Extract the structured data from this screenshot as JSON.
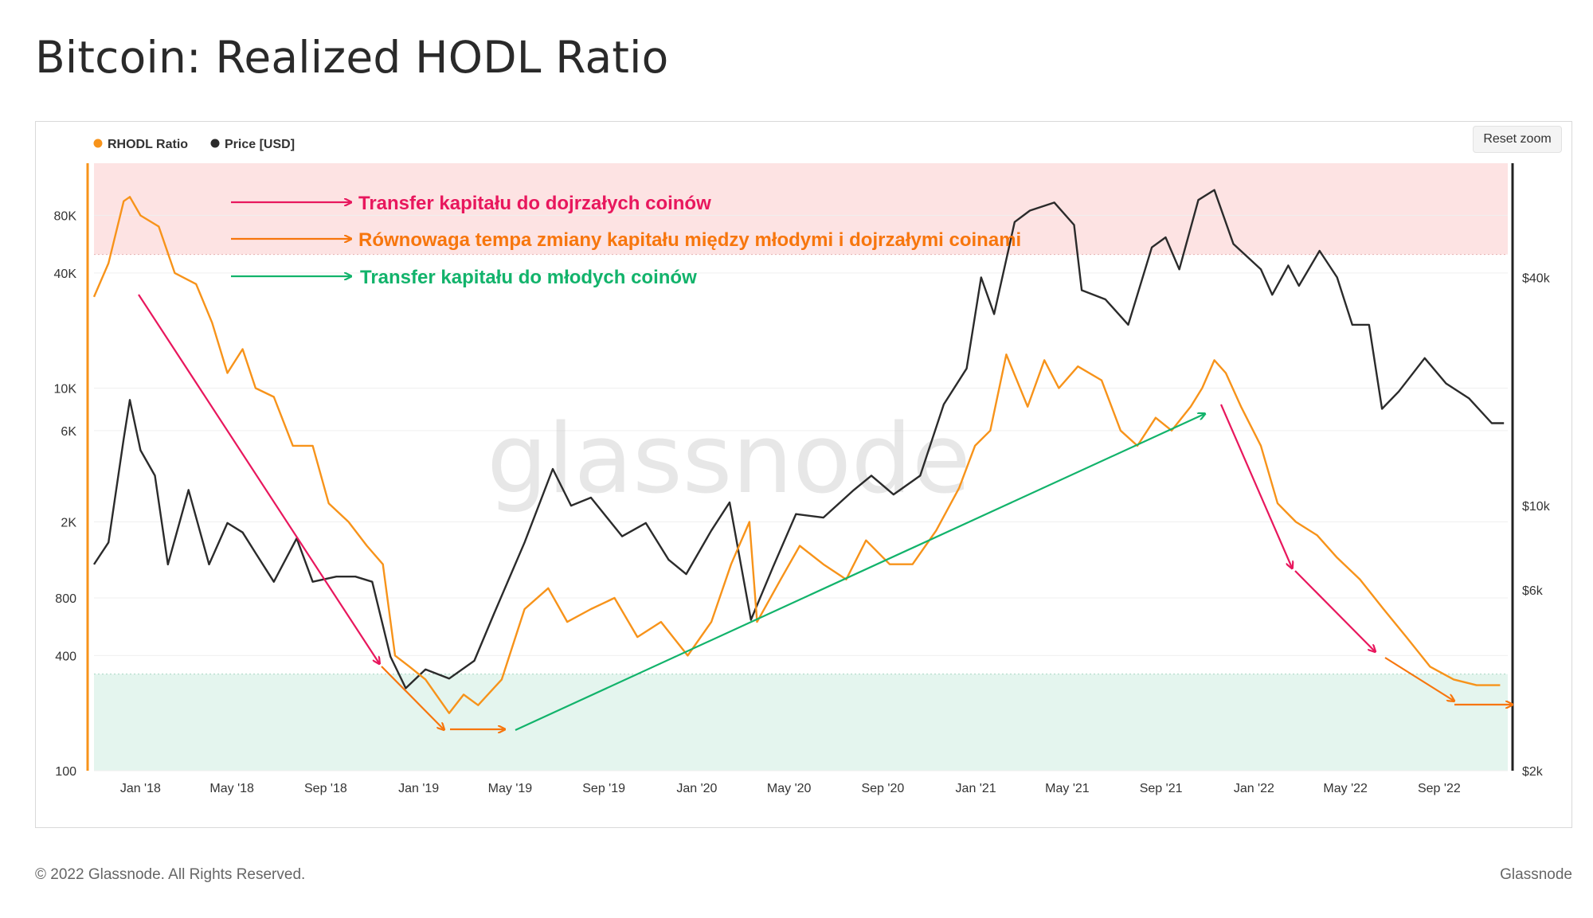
{
  "title": "Bitcoin: Realized HODL Ratio",
  "reset_zoom_label": "Reset zoom",
  "footer": {
    "copyright": "© 2022 Glassnode. All Rights Reserved.",
    "brand": "Glassnode"
  },
  "watermark": "glassnode",
  "colors": {
    "rhodl": "#f7931a",
    "price": "#2b2b2b",
    "mature_annotation": "#e8175d",
    "equilibrium_annotation": "#f7760d",
    "young_annotation": "#12b36b",
    "upper_band": "#fde3e3",
    "lower_band": "#e4f5ee"
  },
  "chart_data": {
    "type": "line",
    "x_range": [
      "2017-11-01",
      "2022-11-30"
    ],
    "x_ticks": [
      "Jan '18",
      "May '18",
      "Sep '18",
      "Jan '19",
      "May '19",
      "Sep '19",
      "Jan '20",
      "May '20",
      "Sep '20",
      "Jan '21",
      "May '21",
      "Sep '21",
      "Jan '22",
      "May '22",
      "Sep '22"
    ],
    "left_axis": {
      "scale": "log",
      "range": [
        100,
        150000
      ],
      "ticks": [
        {
          "value": 100,
          "label": "100"
        },
        {
          "value": 400,
          "label": "400"
        },
        {
          "value": 800,
          "label": "800"
        },
        {
          "value": 2000,
          "label": "2K"
        },
        {
          "value": 6000,
          "label": "6K"
        },
        {
          "value": 10000,
          "label": "10K"
        },
        {
          "value": 40000,
          "label": "40K"
        },
        {
          "value": 80000,
          "label": "80K"
        }
      ]
    },
    "right_axis": {
      "scale": "log",
      "range": [
        2000,
        80000
      ],
      "ticks": [
        {
          "value": 2000,
          "label": "$2k"
        },
        {
          "value": 6000,
          "label": "$6k"
        },
        {
          "value": 10000,
          "label": "$10k"
        },
        {
          "value": 40000,
          "label": "$40k"
        }
      ]
    },
    "bands": [
      {
        "name": "upper",
        "from": 50000,
        "to": 150000
      },
      {
        "name": "lower",
        "from": 100,
        "to": 320
      }
    ],
    "legend": {
      "placement": "top-left",
      "items": [
        {
          "label": "RHODL Ratio",
          "color": "#f7931a"
        },
        {
          "label": "Price [USD]",
          "color": "#2b2b2b"
        }
      ]
    },
    "series": [
      {
        "name": "RHODL Ratio",
        "axis": "left",
        "color": "#f7931a",
        "points": [
          [
            "2017-11-01",
            30000
          ],
          [
            "2017-11-20",
            45000
          ],
          [
            "2017-12-10",
            95000
          ],
          [
            "2017-12-18",
            100000
          ],
          [
            "2018-01-01",
            80000
          ],
          [
            "2018-01-25",
            70000
          ],
          [
            "2018-02-15",
            40000
          ],
          [
            "2018-03-15",
            35000
          ],
          [
            "2018-04-05",
            22000
          ],
          [
            "2018-04-25",
            12000
          ],
          [
            "2018-05-15",
            16000
          ],
          [
            "2018-06-01",
            10000
          ],
          [
            "2018-06-25",
            9000
          ],
          [
            "2018-07-20",
            5000
          ],
          [
            "2018-08-15",
            5000
          ],
          [
            "2018-09-05",
            2500
          ],
          [
            "2018-10-01",
            2000
          ],
          [
            "2018-10-25",
            1500
          ],
          [
            "2018-11-15",
            1200
          ],
          [
            "2018-12-01",
            400
          ],
          [
            "2018-12-20",
            350
          ],
          [
            "2019-01-10",
            300
          ],
          [
            "2019-02-10",
            200
          ],
          [
            "2019-03-01",
            250
          ],
          [
            "2019-03-20",
            220
          ],
          [
            "2019-04-20",
            300
          ],
          [
            "2019-05-20",
            700
          ],
          [
            "2019-06-20",
            900
          ],
          [
            "2019-07-15",
            600
          ],
          [
            "2019-08-15",
            700
          ],
          [
            "2019-09-15",
            800
          ],
          [
            "2019-10-15",
            500
          ],
          [
            "2019-11-15",
            600
          ],
          [
            "2019-12-20",
            400
          ],
          [
            "2020-01-20",
            600
          ],
          [
            "2020-02-15",
            1200
          ],
          [
            "2020-03-10",
            2000
          ],
          [
            "2020-03-20",
            600
          ],
          [
            "2020-04-20",
            1000
          ],
          [
            "2020-05-15",
            1500
          ],
          [
            "2020-06-15",
            1200
          ],
          [
            "2020-07-15",
            1000
          ],
          [
            "2020-08-10",
            1600
          ],
          [
            "2020-09-10",
            1200
          ],
          [
            "2020-10-10",
            1200
          ],
          [
            "2020-11-10",
            1800
          ],
          [
            "2020-12-10",
            3000
          ],
          [
            "2020-12-31",
            5000
          ],
          [
            "2021-01-20",
            6000
          ],
          [
            "2021-02-10",
            15000
          ],
          [
            "2021-03-10",
            8000
          ],
          [
            "2021-04-01",
            14000
          ],
          [
            "2021-04-20",
            10000
          ],
          [
            "2021-05-15",
            13000
          ],
          [
            "2021-06-15",
            11000
          ],
          [
            "2021-07-10",
            6000
          ],
          [
            "2021-08-01",
            5000
          ],
          [
            "2021-08-25",
            7000
          ],
          [
            "2021-09-15",
            6000
          ],
          [
            "2021-10-10",
            8000
          ],
          [
            "2021-10-25",
            10000
          ],
          [
            "2021-11-10",
            14000
          ],
          [
            "2021-11-25",
            12000
          ],
          [
            "2021-12-15",
            8000
          ],
          [
            "2022-01-10",
            5000
          ],
          [
            "2022-02-01",
            2500
          ],
          [
            "2022-02-25",
            2000
          ],
          [
            "2022-03-25",
            1700
          ],
          [
            "2022-04-20",
            1300
          ],
          [
            "2022-05-20",
            1000
          ],
          [
            "2022-06-20",
            700
          ],
          [
            "2022-07-20",
            500
          ],
          [
            "2022-08-20",
            350
          ],
          [
            "2022-09-20",
            300
          ],
          [
            "2022-10-20",
            280
          ],
          [
            "2022-11-20",
            280
          ]
        ]
      },
      {
        "name": "Price [USD]",
        "axis": "right",
        "color": "#2b2b2b",
        "points": [
          [
            "2017-11-01",
            7000
          ],
          [
            "2017-11-20",
            8000
          ],
          [
            "2017-12-10",
            15000
          ],
          [
            "2017-12-18",
            19000
          ],
          [
            "2018-01-01",
            14000
          ],
          [
            "2018-01-20",
            12000
          ],
          [
            "2018-02-06",
            7000
          ],
          [
            "2018-03-05",
            11000
          ],
          [
            "2018-04-01",
            7000
          ],
          [
            "2018-04-25",
            9000
          ],
          [
            "2018-05-15",
            8500
          ],
          [
            "2018-06-01",
            7500
          ],
          [
            "2018-06-25",
            6300
          ],
          [
            "2018-07-25",
            8200
          ],
          [
            "2018-08-15",
            6300
          ],
          [
            "2018-09-15",
            6500
          ],
          [
            "2018-10-10",
            6500
          ],
          [
            "2018-11-01",
            6300
          ],
          [
            "2018-11-25",
            4000
          ],
          [
            "2018-12-15",
            3300
          ],
          [
            "2019-01-10",
            3700
          ],
          [
            "2019-02-10",
            3500
          ],
          [
            "2019-03-15",
            3900
          ],
          [
            "2019-04-10",
            5200
          ],
          [
            "2019-05-20",
            8000
          ],
          [
            "2019-06-26",
            12500
          ],
          [
            "2019-07-20",
            10000
          ],
          [
            "2019-08-15",
            10500
          ],
          [
            "2019-09-25",
            8300
          ],
          [
            "2019-10-26",
            9000
          ],
          [
            "2019-11-25",
            7200
          ],
          [
            "2019-12-18",
            6600
          ],
          [
            "2020-01-20",
            8600
          ],
          [
            "2020-02-13",
            10200
          ],
          [
            "2020-03-12",
            5000
          ],
          [
            "2020-04-10",
            6900
          ],
          [
            "2020-05-10",
            9500
          ],
          [
            "2020-06-15",
            9300
          ],
          [
            "2020-07-25",
            11000
          ],
          [
            "2020-08-17",
            12000
          ],
          [
            "2020-09-15",
            10700
          ],
          [
            "2020-10-20",
            12000
          ],
          [
            "2020-11-20",
            18500
          ],
          [
            "2020-12-20",
            23000
          ],
          [
            "2021-01-08",
            40000
          ],
          [
            "2021-01-25",
            32000
          ],
          [
            "2021-02-21",
            56000
          ],
          [
            "2021-03-13",
            60000
          ],
          [
            "2021-04-14",
            63000
          ],
          [
            "2021-05-10",
            55000
          ],
          [
            "2021-05-20",
            37000
          ],
          [
            "2021-06-20",
            35000
          ],
          [
            "2021-07-20",
            30000
          ],
          [
            "2021-08-20",
            48000
          ],
          [
            "2021-09-07",
            51000
          ],
          [
            "2021-09-25",
            42000
          ],
          [
            "2021-10-20",
            64000
          ],
          [
            "2021-11-10",
            68000
          ],
          [
            "2021-12-05",
            49000
          ],
          [
            "2022-01-10",
            42000
          ],
          [
            "2022-01-25",
            36000
          ],
          [
            "2022-02-15",
            43000
          ],
          [
            "2022-03-01",
            38000
          ],
          [
            "2022-03-28",
            47000
          ],
          [
            "2022-04-20",
            40000
          ],
          [
            "2022-05-10",
            30000
          ],
          [
            "2022-06-01",
            30000
          ],
          [
            "2022-06-18",
            18000
          ],
          [
            "2022-07-10",
            20000
          ],
          [
            "2022-08-13",
            24500
          ],
          [
            "2022-09-10",
            21000
          ],
          [
            "2022-10-10",
            19200
          ],
          [
            "2022-11-09",
            16500
          ],
          [
            "2022-11-25",
            16500
          ]
        ]
      }
    ],
    "annotations": [
      {
        "label": "Transfer kapitału do dojrzałych coinów",
        "color": "#e8175d"
      },
      {
        "label": "Równowaga tempa zmiany kapitału między młodymi i dojrzałymi coinami",
        "color": "#f7760d"
      },
      {
        "label": "Transfer kapitału do młodych coinów",
        "color": "#12b36b"
      }
    ]
  }
}
